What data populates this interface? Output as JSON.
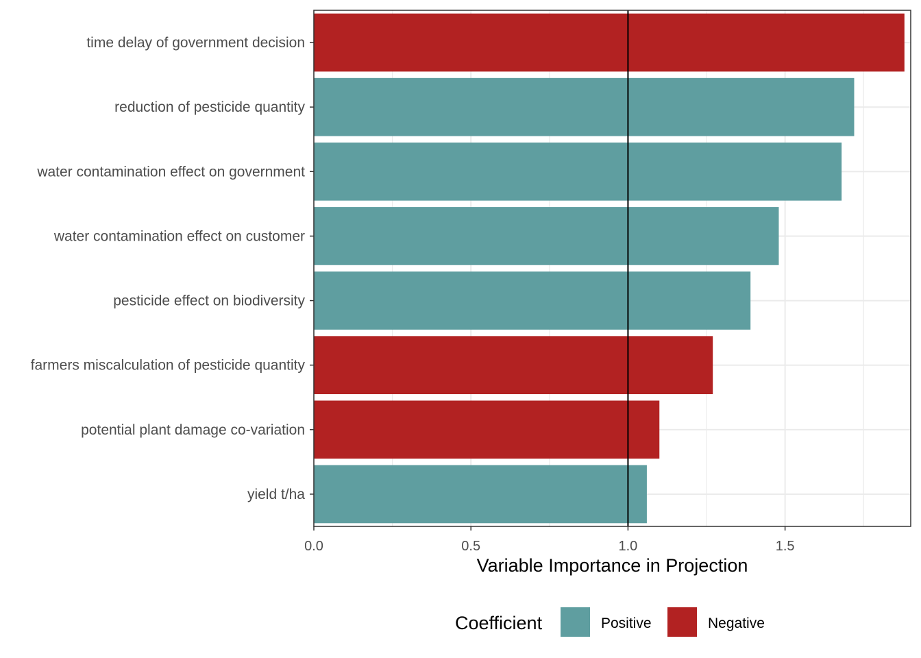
{
  "chart_data": {
    "type": "bar",
    "orientation": "horizontal",
    "xlabel": "Variable Importance in Projection",
    "ylabel": "",
    "xlim": [
      0,
      1.9
    ],
    "x_ticks": [
      0.0,
      0.5,
      1.0,
      1.5
    ],
    "x_tick_labels": [
      "0.0",
      "0.5",
      "1.0",
      "1.5"
    ],
    "reference_line": 1.0,
    "grid": true,
    "categories": [
      "time delay of government decision",
      "reduction of pesticide quantity",
      "water contamination effect on government",
      "water contamination effect on customer",
      "pesticide effect on biodiversity",
      "farmers miscalculation of pesticide quantity",
      "potential plant damage co-variation",
      "yield t/ha"
    ],
    "values": [
      1.88,
      1.72,
      1.68,
      1.48,
      1.39,
      1.27,
      1.1,
      1.06
    ],
    "coefficient": [
      "Negative",
      "Positive",
      "Positive",
      "Positive",
      "Positive",
      "Negative",
      "Negative",
      "Positive"
    ],
    "legend": {
      "title": "Coefficient",
      "placement": "bottom",
      "entries": [
        {
          "label": "Positive",
          "color": "#5f9ea0"
        },
        {
          "label": "Negative",
          "color": "#b22222"
        }
      ]
    }
  }
}
